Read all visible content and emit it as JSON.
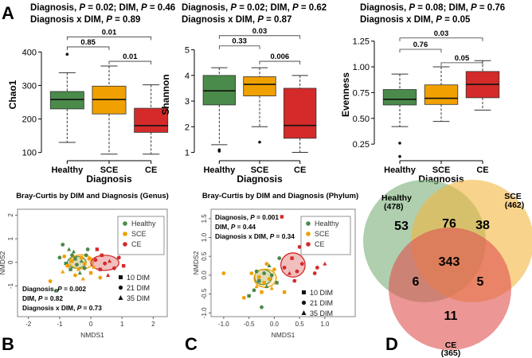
{
  "panel_letters": [
    "A",
    "B",
    "C",
    "D"
  ],
  "groups": [
    "Healthy",
    "SCE",
    "CE"
  ],
  "colors": {
    "Healthy": "#4a8a4a",
    "SCE": "#f0a000",
    "CE": "#d42a2a"
  },
  "chart_data": [
    {
      "type": "boxplot",
      "panel": "A1",
      "stats_line1": "Diagnosis, P = 0.02; DIM, P = 0.46",
      "stats_line2": "Diagnosis x DIM, P = 0.89",
      "ylabel": "Chao1",
      "xlabel": "Diagnosis",
      "categories": [
        "Healthy",
        "SCE",
        "CE"
      ],
      "yticks": [
        100,
        200,
        300,
        400
      ],
      "ylim": [
        85,
        460
      ],
      "boxes": [
        {
          "whisker_low": 130,
          "q1": 230,
          "median": 258,
          "q3": 282,
          "whisker_high": 338,
          "outliers": [
            393
          ]
        },
        {
          "whisker_low": 95,
          "q1": 215,
          "median": 258,
          "q3": 298,
          "whisker_high": 358,
          "outliers": []
        },
        {
          "whisker_low": 95,
          "q1": 160,
          "median": 180,
          "q3": 232,
          "whisker_high": 302,
          "outliers": []
        }
      ],
      "brackets": [
        {
          "from": 0,
          "to": 2,
          "label": "0.01",
          "y": 445
        },
        {
          "from": 0,
          "to": 1,
          "label": "0.85",
          "y": 415
        },
        {
          "from": 1,
          "to": 2,
          "label": "0.01",
          "y": 372
        }
      ]
    },
    {
      "type": "boxplot",
      "panel": "A2",
      "stats_line1": "Diagnosis, P = 0.02; DIM, P = 0.62",
      "stats_line2": "Diagnosis x DIM, P = 0.87",
      "ylabel": "Shannon",
      "xlabel": "Diagnosis",
      "categories": [
        "Healthy",
        "SCE",
        "CE"
      ],
      "yticks": [
        1,
        2,
        3,
        4,
        5
      ],
      "ylim": [
        0.8,
        5.7
      ],
      "boxes": [
        {
          "whisker_low": 1.3,
          "q1": 2.85,
          "median": 3.4,
          "q3": 4.0,
          "whisker_high": 4.3,
          "outliers": [
            1.05,
            1.1
          ]
        },
        {
          "whisker_low": 2.0,
          "q1": 3.2,
          "median": 3.65,
          "q3": 3.95,
          "whisker_high": 4.3,
          "outliers": [
            1.4
          ]
        },
        {
          "whisker_low": 1.0,
          "q1": 1.55,
          "median": 2.05,
          "q3": 3.5,
          "whisker_high": 4.0,
          "outliers": []
        }
      ],
      "brackets": [
        {
          "from": 0,
          "to": 2,
          "label": "0.03",
          "y": 5.55
        },
        {
          "from": 0,
          "to": 1,
          "label": "0.33",
          "y": 5.15
        },
        {
          "from": 1,
          "to": 2,
          "label": "0.006",
          "y": 4.55
        }
      ]
    },
    {
      "type": "boxplot",
      "panel": "A3",
      "stats_line1": "Diagnosis, P = 0.08; DIM, P = 0.76",
      "stats_line2": "Diagnosis x DIM, P = 0.05",
      "ylabel": "Evenness",
      "xlabel": "Diagnosis",
      "categories": [
        "Healthy",
        "SCE",
        "CE"
      ],
      "yticks": [
        0.25,
        0.5,
        0.75,
        1.0,
        1.25
      ],
      "ytick_labels": [
        "0.25",
        "0.50",
        "0.75",
        "1.00",
        "1.25"
      ],
      "ylim": [
        0.12,
        1.34
      ],
      "boxes": [
        {
          "whisker_low": 0.42,
          "q1": 0.63,
          "median": 0.685,
          "q3": 0.78,
          "whisker_high": 0.93,
          "outliers": [
            0.26,
            0.13
          ]
        },
        {
          "whisker_low": 0.47,
          "q1": 0.635,
          "median": 0.695,
          "q3": 0.825,
          "whisker_high": 1.0,
          "outliers": []
        },
        {
          "whisker_low": 0.58,
          "q1": 0.7,
          "median": 0.83,
          "q3": 0.955,
          "whisker_high": 1.06,
          "outliers": []
        }
      ],
      "brackets": [
        {
          "from": 0,
          "to": 2,
          "label": "0.03",
          "y": 1.28
        },
        {
          "from": 0,
          "to": 1,
          "label": "0.76",
          "y": 1.17
        },
        {
          "from": 1,
          "to": 2,
          "label": "0.05",
          "y": 1.04
        }
      ]
    },
    {
      "type": "scatter",
      "panel": "B",
      "title": "Bray-Curtis by DIM and Diagnosis (Genus)",
      "xlabel": "NMDS1",
      "ylabel": "NMDS2",
      "xticks": [
        -2,
        -1,
        0,
        1,
        2
      ],
      "yticks": [
        -1,
        0,
        1,
        2
      ],
      "xlim": [
        -2.35,
        2.45
      ],
      "ylim": [
        -2.3,
        2.25
      ],
      "legend_groups": [
        "Healthy",
        "SCE",
        "CE"
      ],
      "legend_dim": [
        "10 DIM",
        "21 DIM",
        "35 DIM"
      ],
      "stats": [
        "Diagnosis, P = 0.002",
        "DIM, P = 0.82",
        "Diagnosis x DIM, P = 0.73"
      ],
      "ellipses": [
        {
          "group": "Healthy",
          "cx": -0.45,
          "cy": 0.0,
          "rx": 0.3,
          "ry": 0.25
        },
        {
          "group": "SCE",
          "cx": -0.3,
          "cy": 0.02,
          "rx": 0.38,
          "ry": 0.3
        },
        {
          "group": "CE",
          "cx": 0.45,
          "cy": -0.02,
          "rx": 0.45,
          "ry": 0.32
        }
      ],
      "points": [
        {
          "x": -0.9,
          "y": 0.75,
          "group": "Healthy",
          "dim": 21
        },
        {
          "x": -0.7,
          "y": 0.55,
          "group": "Healthy",
          "dim": 35
        },
        {
          "x": -0.6,
          "y": 0.3,
          "group": "Healthy",
          "dim": 21
        },
        {
          "x": -0.5,
          "y": 0.15,
          "group": "Healthy",
          "dim": 10
        },
        {
          "x": -0.45,
          "y": -0.1,
          "group": "Healthy",
          "dim": 21
        },
        {
          "x": -0.3,
          "y": 0.05,
          "group": "Healthy",
          "dim": 35
        },
        {
          "x": -0.2,
          "y": -0.25,
          "group": "Healthy",
          "dim": 21
        },
        {
          "x": -0.65,
          "y": -0.3,
          "group": "Healthy",
          "dim": 10
        },
        {
          "x": -0.55,
          "y": 0.45,
          "group": "Healthy",
          "dim": 35
        },
        {
          "x": -0.15,
          "y": 0.3,
          "group": "Healthy",
          "dim": 21
        },
        {
          "x": -1.1,
          "y": -1.2,
          "group": "Healthy",
          "dim": 10
        },
        {
          "x": -1.0,
          "y": 0.2,
          "group": "Healthy",
          "dim": 21
        },
        {
          "x": -0.35,
          "y": -0.45,
          "group": "Healthy",
          "dim": 35
        },
        {
          "x": -0.1,
          "y": 0.55,
          "group": "Healthy",
          "dim": 21
        },
        {
          "x": -0.8,
          "y": -0.05,
          "group": "Healthy",
          "dim": 10
        },
        {
          "x": -0.85,
          "y": 0.25,
          "group": "SCE",
          "dim": 21
        },
        {
          "x": -0.75,
          "y": -0.15,
          "group": "SCE",
          "dim": 10
        },
        {
          "x": -0.6,
          "y": 0.05,
          "group": "SCE",
          "dim": 21
        },
        {
          "x": -0.4,
          "y": -0.3,
          "group": "SCE",
          "dim": 35
        },
        {
          "x": -0.3,
          "y": 0.2,
          "group": "SCE",
          "dim": 21
        },
        {
          "x": -0.2,
          "y": -0.05,
          "group": "SCE",
          "dim": 10
        },
        {
          "x": -0.05,
          "y": 0.15,
          "group": "SCE",
          "dim": 21
        },
        {
          "x": 0.1,
          "y": -0.2,
          "group": "SCE",
          "dim": 35
        },
        {
          "x": -0.5,
          "y": -0.55,
          "group": "SCE",
          "dim": 21
        },
        {
          "x": -0.9,
          "y": -0.4,
          "group": "SCE",
          "dim": 35
        },
        {
          "x": 0.0,
          "y": -0.45,
          "group": "SCE",
          "dim": 10
        },
        {
          "x": -1.3,
          "y": -0.8,
          "group": "SCE",
          "dim": 21
        },
        {
          "x": 0.3,
          "y": -0.65,
          "group": "SCE",
          "dim": 21
        },
        {
          "x": -0.25,
          "y": -0.7,
          "group": "SCE",
          "dim": 35
        },
        {
          "x": 0.15,
          "y": 0.1,
          "group": "CE",
          "dim": 21
        },
        {
          "x": 0.35,
          "y": 0.3,
          "group": "CE",
          "dim": 10
        },
        {
          "x": 0.45,
          "y": -0.05,
          "group": "CE",
          "dim": 21
        },
        {
          "x": 0.6,
          "y": 0.05,
          "group": "CE",
          "dim": 35
        },
        {
          "x": 0.75,
          "y": -0.25,
          "group": "CE",
          "dim": 21
        },
        {
          "x": 0.3,
          "y": -0.3,
          "group": "CE",
          "dim": 10
        },
        {
          "x": 0.9,
          "y": 0.2,
          "group": "CE",
          "dim": 21
        },
        {
          "x": 1.05,
          "y": -0.15,
          "group": "CE",
          "dim": 10
        },
        {
          "x": 1.4,
          "y": 0.45,
          "group": "CE",
          "dim": 21
        },
        {
          "x": 0.55,
          "y": -0.55,
          "group": "CE",
          "dim": 35
        },
        {
          "x": 0.2,
          "y": 0.55,
          "group": "CE",
          "dim": 10
        }
      ]
    },
    {
      "type": "scatter",
      "panel": "C",
      "title": "Bray-Curtis by DIM and Diagnosis (Phylum)",
      "xlabel": "NMDS1",
      "ylabel": "NMDS2",
      "xticks": [
        -1.0,
        -0.5,
        0.0,
        0.5,
        1.0
      ],
      "yticks": [
        -1.0,
        -0.5,
        0.0,
        0.5,
        1.0,
        1.5
      ],
      "ytick_labels": [
        "-1.0",
        "-0.5",
        "0.0",
        "0.5",
        "1.0",
        "1.5"
      ],
      "xtick_labels": [
        "-1.0",
        "-0.5",
        "0.0",
        "0.5",
        "1.0"
      ],
      "xlim": [
        -1.25,
        1.6
      ],
      "ylim": [
        -1.1,
        1.75
      ],
      "legend_groups": [
        "Healthy",
        "SCE",
        "CE"
      ],
      "legend_dim": [
        "10 DIM",
        "21 DIM",
        "35 DIM"
      ],
      "stats": [
        "Diagnosis, P = 0.001",
        "DIM, P = 0.44",
        "Diagnosis x DIM, P = 0.34"
      ],
      "ellipses": [
        {
          "group": "Healthy",
          "cx": -0.22,
          "cy": -0.05,
          "rx": 0.17,
          "ry": 0.2
        },
        {
          "group": "SCE",
          "cx": -0.18,
          "cy": -0.08,
          "rx": 0.22,
          "ry": 0.24
        },
        {
          "group": "CE",
          "cx": 0.37,
          "cy": 0.27,
          "rx": 0.24,
          "ry": 0.32
        }
      ],
      "points": [
        {
          "x": -0.35,
          "y": 0.1,
          "group": "Healthy",
          "dim": 21
        },
        {
          "x": -0.3,
          "y": -0.15,
          "group": "Healthy",
          "dim": 10
        },
        {
          "x": -0.2,
          "y": 0.05,
          "group": "Healthy",
          "dim": 21
        },
        {
          "x": -0.15,
          "y": -0.3,
          "group": "Healthy",
          "dim": 35
        },
        {
          "x": -0.05,
          "y": 0.0,
          "group": "Healthy",
          "dim": 21
        },
        {
          "x": -0.4,
          "y": -0.4,
          "group": "Healthy",
          "dim": 21
        },
        {
          "x": 0.05,
          "y": -0.2,
          "group": "Healthy",
          "dim": 10
        },
        {
          "x": -0.1,
          "y": 0.25,
          "group": "Healthy",
          "dim": 35
        },
        {
          "x": -0.25,
          "y": -0.85,
          "group": "Healthy",
          "dim": 21
        },
        {
          "x": 0.1,
          "y": 0.45,
          "group": "Healthy",
          "dim": 21
        },
        {
          "x": -0.5,
          "y": -0.55,
          "group": "Healthy",
          "dim": 10
        },
        {
          "x": -0.3,
          "y": -0.05,
          "group": "SCE",
          "dim": 21
        },
        {
          "x": -0.2,
          "y": -0.2,
          "group": "SCE",
          "dim": 10
        },
        {
          "x": -0.1,
          "y": -0.1,
          "group": "SCE",
          "dim": 21
        },
        {
          "x": -0.35,
          "y": -0.3,
          "group": "SCE",
          "dim": 35
        },
        {
          "x": 0.0,
          "y": 0.15,
          "group": "SCE",
          "dim": 21
        },
        {
          "x": -0.45,
          "y": 0.05,
          "group": "SCE",
          "dim": 21
        },
        {
          "x": -0.25,
          "y": -0.45,
          "group": "SCE",
          "dim": 10
        },
        {
          "x": -0.05,
          "y": -0.35,
          "group": "SCE",
          "dim": 35
        },
        {
          "x": -0.6,
          "y": -0.6,
          "group": "SCE",
          "dim": 21
        },
        {
          "x": -0.15,
          "y": 0.3,
          "group": "SCE",
          "dim": 21
        },
        {
          "x": -1.0,
          "y": 0.05,
          "group": "SCE",
          "dim": 21
        },
        {
          "x": 0.2,
          "y": -0.45,
          "group": "SCE",
          "dim": 10
        },
        {
          "x": 0.2,
          "y": 0.2,
          "group": "CE",
          "dim": 21
        },
        {
          "x": 0.35,
          "y": 0.45,
          "group": "CE",
          "dim": 10
        },
        {
          "x": 0.45,
          "y": 0.1,
          "group": "CE",
          "dim": 21
        },
        {
          "x": 0.3,
          "y": 0.05,
          "group": "CE",
          "dim": 35
        },
        {
          "x": 0.55,
          "y": 0.3,
          "group": "CE",
          "dim": 21
        },
        {
          "x": 0.6,
          "y": 0.6,
          "group": "CE",
          "dim": 10
        },
        {
          "x": 0.4,
          "y": -0.15,
          "group": "CE",
          "dim": 21
        },
        {
          "x": 0.15,
          "y": 1.55,
          "group": "CE",
          "dim": 10
        },
        {
          "x": 0.65,
          "y": 0.95,
          "group": "CE",
          "dim": 35
        },
        {
          "x": 0.85,
          "y": 0.2,
          "group": "CE",
          "dim": 21
        },
        {
          "x": 1.0,
          "y": 0.3,
          "group": "CE",
          "dim": 35
        },
        {
          "x": 0.8,
          "y": 0.05,
          "group": "CE",
          "dim": 21
        },
        {
          "x": 0.5,
          "y": 0.75,
          "group": "CE",
          "dim": 21
        }
      ]
    },
    {
      "type": "venn",
      "panel": "D",
      "sets": [
        {
          "name": "Healthy",
          "total_label": "(478)"
        },
        {
          "name": "SCE",
          "total_label": "(462)"
        },
        {
          "name": "CE",
          "total_label": "(365)"
        }
      ],
      "regions": {
        "healthy_only": "53",
        "sce_only": "38",
        "ce_only": "11",
        "healthy_sce": "76",
        "healthy_ce": "6",
        "sce_ce": "5",
        "all": "343"
      }
    }
  ]
}
